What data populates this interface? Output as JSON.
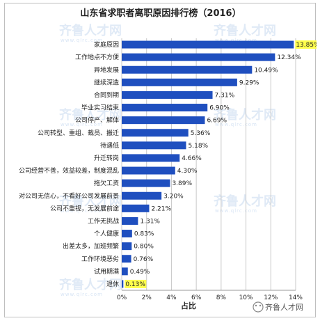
{
  "chart_data": {
    "type": "bar",
    "orientation": "horizontal",
    "title": "山东省求职者离职原因排行榜（2016）",
    "xlabel": "占比",
    "xlim": [
      0,
      14
    ],
    "xticks": [
      "0%",
      "2%",
      "4%",
      "6%",
      "8%",
      "10%",
      "12%",
      "14%"
    ],
    "grid": true,
    "categories": [
      "家庭原因",
      "工作地点不方便",
      "异地发展",
      "继续深造",
      "合同到期",
      "毕业实习结束",
      "公司停产、解体",
      "公司转型、重组、裁员、搬迁",
      "待遇低",
      "升迁转岗",
      "公司经营不善，效益较差，制度混乱",
      "拖欠工资",
      "对公司无信心，不看好公司发展前景",
      "公司不重视，无发展前途",
      "工作无挑战",
      "个人健康",
      "出差太多，加班频繁",
      "工作环境恶劣",
      "试用期满",
      "退休"
    ],
    "values": [
      13.85,
      12.34,
      10.49,
      9.29,
      7.31,
      6.9,
      6.69,
      5.36,
      5.18,
      4.66,
      4.3,
      3.89,
      3.2,
      2.21,
      1.31,
      0.83,
      0.8,
      0.76,
      0.49,
      0.13
    ],
    "value_labels": [
      "13.85%",
      "12.34%",
      "10.49%",
      "9.29%",
      "7.31%",
      "6.90%",
      "6.69%",
      "5.36%",
      "5.18%",
      "4.66%",
      "4.30%",
      "3.89%",
      "3.20%",
      "2.21%",
      "1.31%",
      "0.83%",
      "0.80%",
      "0.76%",
      "0.49%",
      "0.13%"
    ],
    "highlighted": [
      "13.85%",
      "0.13%"
    ],
    "bar_color": "#1f4fbf",
    "highlight_color": "#ffff4d",
    "grid_color": "#c8c8c8"
  },
  "watermark": {
    "text": "齐鲁人才网",
    "sub": "www.qlrc.com"
  },
  "badge": {
    "text": "齐鲁人才网"
  }
}
